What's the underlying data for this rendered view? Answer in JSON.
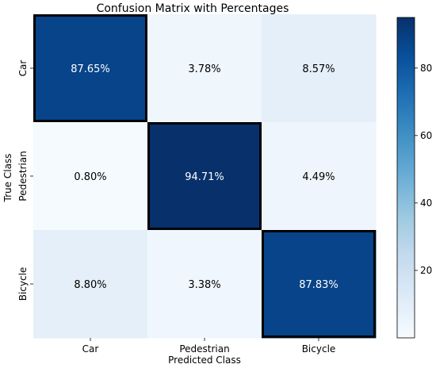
{
  "chart_data": {
    "type": "heatmap",
    "title": "Confusion Matrix with Percentages",
    "xlabel": "Predicted Class",
    "ylabel": "True Class",
    "x_categories": [
      "Car",
      "Pedestrian",
      "Bicycle"
    ],
    "y_categories": [
      "Car",
      "Pedestrian",
      "Bicycle"
    ],
    "values": [
      [
        87.65,
        3.78,
        8.57
      ],
      [
        0.8,
        94.71,
        4.49
      ],
      [
        8.8,
        3.38,
        87.83
      ]
    ],
    "value_labels": [
      [
        "87.65%",
        "3.78%",
        "8.57%"
      ],
      [
        "0.80%",
        "94.71%",
        "4.49%"
      ],
      [
        "8.80%",
        "3.38%",
        "87.83%"
      ]
    ],
    "highlight_diagonal": true,
    "colormap": "Blues",
    "colorbar": {
      "ticks": [
        20,
        40,
        60,
        80
      ],
      "range": [
        0,
        95
      ]
    }
  }
}
